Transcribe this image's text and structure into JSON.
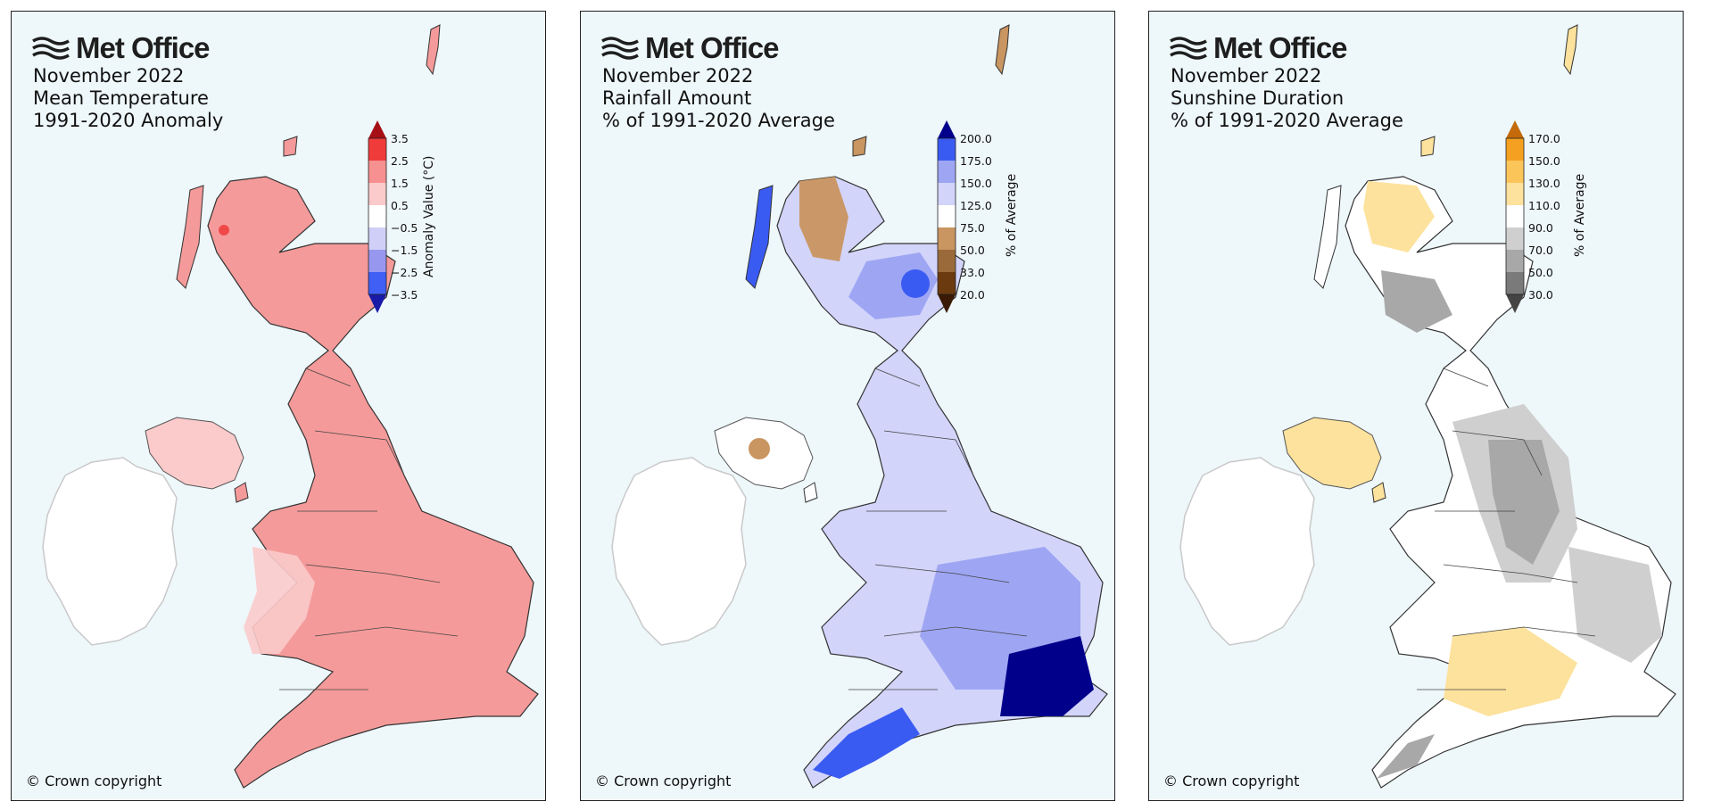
{
  "brand": "Met Office",
  "copyright": "© Crown copyright",
  "panels": [
    {
      "id": "temperature",
      "title_lines": [
        "November 2022",
        "Mean Temperature",
        "1991-2020 Anomaly"
      ],
      "colorbar": {
        "label": "Anomaly Value (°C)",
        "ticks": [
          "3.5",
          "2.5",
          "1.5",
          "0.5",
          "−0.5",
          "−1.5",
          "−2.5",
          "−3.5"
        ],
        "colors": [
          "#a50f15",
          "#f03b3b",
          "#f79090",
          "#fbcaca",
          "#ffffff",
          "#cfcff7",
          "#9797f0",
          "#3f5ff5",
          "#1a1aa8"
        ]
      },
      "map_colors": {
        "main": "#f59a9a",
        "light": "#fbcaca",
        "hot": "#f04848"
      }
    },
    {
      "id": "rainfall",
      "title_lines": [
        "November 2022",
        "Rainfall Amount",
        "% of 1991-2020 Average"
      ],
      "colorbar": {
        "label": "% of Average",
        "ticks": [
          "200.0",
          "175.0",
          "150.0",
          "125.0",
          "75.0",
          "50.0",
          "33.0",
          "20.0"
        ],
        "colors": [
          "#00008b",
          "#3a5bf2",
          "#9ea6f3",
          "#d2d4fa",
          "#ffffff",
          "#c99560",
          "#9a6a3a",
          "#6b3a0f",
          "#3a1a05"
        ]
      },
      "map_colors": {
        "light": "#d2d4fa",
        "mid": "#9ea6f3",
        "deep": "#3a5bf2",
        "darkest": "#00008b",
        "brown": "#c99560"
      }
    },
    {
      "id": "sunshine",
      "title_lines": [
        "November 2022",
        "Sunshine Duration",
        "% of 1991-2020 Average"
      ],
      "colorbar": {
        "label": "% of Average",
        "ticks": [
          "170.0",
          "150.0",
          "130.0",
          "110.0",
          "90.0",
          "70.0",
          "50.0",
          "30.0"
        ],
        "colors": [
          "#c46a0a",
          "#f5a020",
          "#fbc55a",
          "#fde29d",
          "#ffffff",
          "#cfcfcf",
          "#a8a8a8",
          "#7a7a7a",
          "#444444"
        ]
      },
      "map_colors": {
        "yellow": "#fde29d",
        "orange": "#fbc55a",
        "grey": "#cfcfcf",
        "darkgrey": "#a8a8a8"
      }
    }
  ]
}
